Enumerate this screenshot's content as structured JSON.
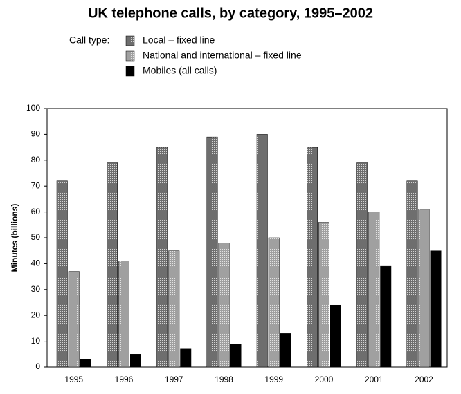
{
  "chart_data": {
    "type": "bar",
    "title": "UK telephone calls, by category, 1995–2002",
    "legend_title": "Call type:",
    "y_label": "Minutes (billions)",
    "categories": [
      "1995",
      "1996",
      "1997",
      "1998",
      "1999",
      "2000",
      "2001",
      "2002"
    ],
    "series": [
      {
        "name": "Local – fixed line",
        "color": "#6e6e6e",
        "values": [
          72,
          79,
          85,
          89,
          90,
          85,
          79,
          72
        ]
      },
      {
        "name": "National and international – fixed line",
        "color": "#a0a0a0",
        "values": [
          37,
          41,
          45,
          48,
          50,
          56,
          60,
          61
        ]
      },
      {
        "name": "Mobiles (all calls)",
        "color": "#000000",
        "values": [
          3,
          5,
          7,
          9,
          13,
          24,
          39,
          45
        ]
      }
    ],
    "ylim": [
      0,
      100
    ],
    "yticks": [
      0,
      10,
      20,
      30,
      40,
      50,
      60,
      70,
      80,
      90,
      100
    ],
    "grid": false
  }
}
